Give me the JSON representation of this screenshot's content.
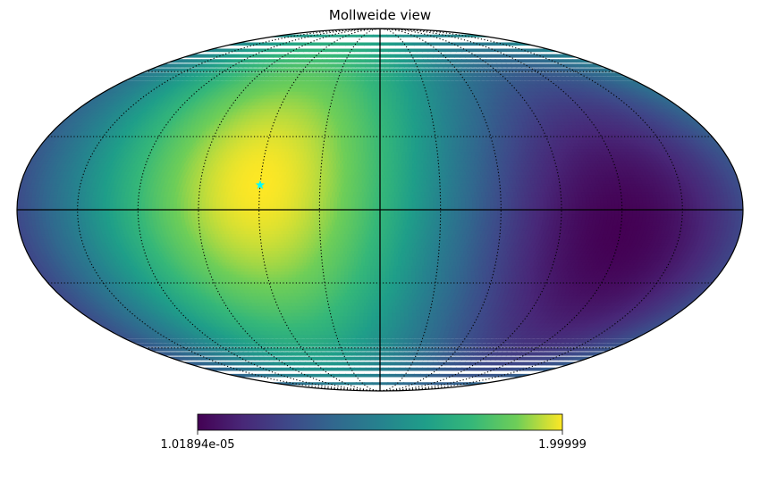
{
  "chart_data": {
    "type": "heatmap",
    "projection": "mollweide",
    "title": "Mollweide view",
    "colormap": "viridis",
    "colorbar": {
      "min_label": "1.01894e-05",
      "max_label": "1.99999",
      "min": 1.01894e-05,
      "max": 1.99999,
      "orientation": "horizontal",
      "placement": "bottom"
    },
    "field": {
      "formula": "1 - cos(angular distance from max point)",
      "min_point": {
        "lon": 60,
        "lat": 10
      },
      "max_point": {
        "lon": -120,
        "lat": -10
      }
    },
    "marker": {
      "shape": "star",
      "color": "#00ffff",
      "lon": 60,
      "lat": 10
    },
    "graticule": {
      "meridians_deg": [
        -150,
        -120,
        -90,
        -60,
        -30,
        0,
        30,
        60,
        90,
        120,
        150
      ],
      "parallels_deg": [
        -60,
        -30,
        0,
        30,
        60
      ],
      "style": "dotted",
      "solid_axes": [
        "lon 0",
        "lat 0"
      ]
    },
    "grid": true
  }
}
